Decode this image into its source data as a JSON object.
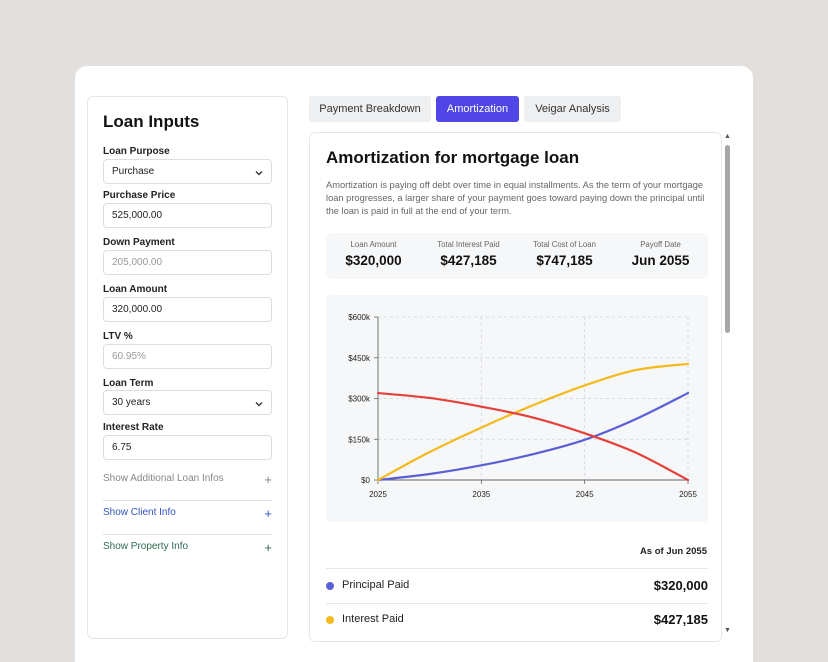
{
  "inputs": {
    "title": "Loan Inputs",
    "loan_purpose": {
      "label": "Loan Purpose",
      "value": "Purchase"
    },
    "purchase_price": {
      "label": "Purchase Price",
      "value": "525,000.00"
    },
    "down_payment": {
      "label": "Down Payment",
      "placeholder": "205,000.00"
    },
    "loan_amount": {
      "label": "Loan Amount",
      "value": "320,000.00"
    },
    "ltv": {
      "label": "LTV %",
      "placeholder": "60.95%"
    },
    "loan_term": {
      "label": "Loan Term",
      "value": "30 years"
    },
    "interest_rate": {
      "label": "Interest Rate",
      "value": "6.75"
    },
    "expanders": [
      {
        "label": "Show Additional Loan Infos",
        "color": "#888888"
      },
      {
        "label": "Show Client Info",
        "color": "#2f54c6"
      },
      {
        "label": "Show Property Info",
        "color": "#2f6b4f"
      }
    ]
  },
  "tabs": [
    {
      "label": "Payment Breakdown",
      "active": false
    },
    {
      "label": "Amortization",
      "active": true
    },
    {
      "label": "Veigar Analysis",
      "active": false
    }
  ],
  "panel": {
    "title": "Amortization for mortgage loan",
    "description": "Amortization is paying off debt over time in equal installments. As the term of your mortgage loan progresses, a larger share of your payment goes toward paying down the principal until the loan is paid in full at the end of your term.",
    "stats": [
      {
        "label": "Loan Amount",
        "value": "$320,000"
      },
      {
        "label": "Total Interest Paid",
        "value": "$427,185"
      },
      {
        "label": "Total Cost of Loan",
        "value": "$747,185"
      },
      {
        "label": "Payoff Date",
        "value": "Jun 2055"
      }
    ],
    "as_of": "As of Jun 2055",
    "legend": [
      {
        "label": "Principal Paid",
        "value": "$320,000",
        "color": "#5b5fd6"
      },
      {
        "label": "Interest Paid",
        "value": "$427,185",
        "color": "#f4b91d"
      }
    ]
  },
  "chart_data": {
    "type": "line",
    "x_ticks": [
      2025,
      2035,
      2045,
      2055
    ],
    "y_ticks": [
      "$0",
      "$150k",
      "$300k",
      "$450k",
      "$600k"
    ],
    "ylim": [
      0,
      600000
    ],
    "xlim": [
      2025,
      2055
    ],
    "grid": true,
    "series": [
      {
        "name": "Principal Paid",
        "color": "#5b5fd6",
        "x": [
          2025,
          2030,
          2035,
          2040,
          2045,
          2050,
          2055
        ],
        "y": [
          0,
          22000,
          54000,
          95000,
          148000,
          225000,
          320000
        ]
      },
      {
        "name": "Interest Paid",
        "color": "#f4b91d",
        "x": [
          2025,
          2030,
          2035,
          2040,
          2045,
          2050,
          2055
        ],
        "y": [
          0,
          103000,
          193000,
          275000,
          348000,
          405000,
          427185
        ]
      },
      {
        "color": "#e5403a",
        "x": [
          2025,
          2030,
          2035,
          2040,
          2045,
          2050,
          2055
        ],
        "y": [
          320000,
          302000,
          270000,
          230000,
          172000,
          100000,
          0
        ]
      }
    ]
  }
}
